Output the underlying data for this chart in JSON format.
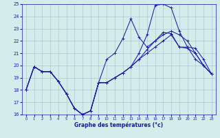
{
  "xlabel": "Graphe des températures (°c)",
  "xlim_min": -0.5,
  "xlim_max": 23.5,
  "ylim_min": 16,
  "ylim_max": 25,
  "yticks": [
    16,
    17,
    18,
    19,
    20,
    21,
    22,
    23,
    24,
    25
  ],
  "xticks": [
    0,
    1,
    2,
    3,
    4,
    5,
    6,
    7,
    8,
    9,
    10,
    11,
    12,
    13,
    14,
    15,
    16,
    17,
    18,
    19,
    20,
    21,
    22,
    23
  ],
  "bg_color": "#d4ecec",
  "line_color": "#1a1aaa",
  "grid_color": "#a0c4c4",
  "series": [
    [
      18.0,
      19.9,
      19.5,
      19.5,
      18.7,
      17.7,
      16.5,
      16.0,
      16.3,
      18.6,
      20.5,
      21.0,
      22.2,
      23.8,
      22.3,
      21.5,
      22.0,
      22.7,
      22.6,
      21.5,
      21.4,
      21.0,
      20.0,
      19.3
    ],
    [
      18.0,
      19.9,
      19.5,
      19.5,
      18.7,
      17.7,
      16.5,
      16.0,
      16.3,
      18.6,
      18.6,
      19.0,
      19.4,
      19.9,
      20.5,
      21.3,
      22.0,
      22.5,
      22.8,
      22.5,
      22.0,
      21.0,
      20.0,
      19.3
    ],
    [
      18.0,
      19.9,
      19.5,
      19.5,
      18.7,
      17.7,
      16.5,
      16.0,
      16.3,
      18.6,
      18.6,
      19.0,
      19.4,
      19.9,
      21.0,
      22.5,
      24.9,
      25.0,
      24.7,
      22.8,
      21.5,
      21.4,
      20.5,
      19.3
    ],
    [
      18.0,
      19.9,
      19.5,
      19.5,
      18.7,
      17.7,
      16.5,
      16.0,
      16.3,
      18.6,
      18.6,
      19.0,
      19.4,
      19.9,
      20.5,
      21.0,
      21.5,
      22.0,
      22.5,
      21.5,
      21.5,
      20.5,
      20.0,
      19.3
    ]
  ]
}
